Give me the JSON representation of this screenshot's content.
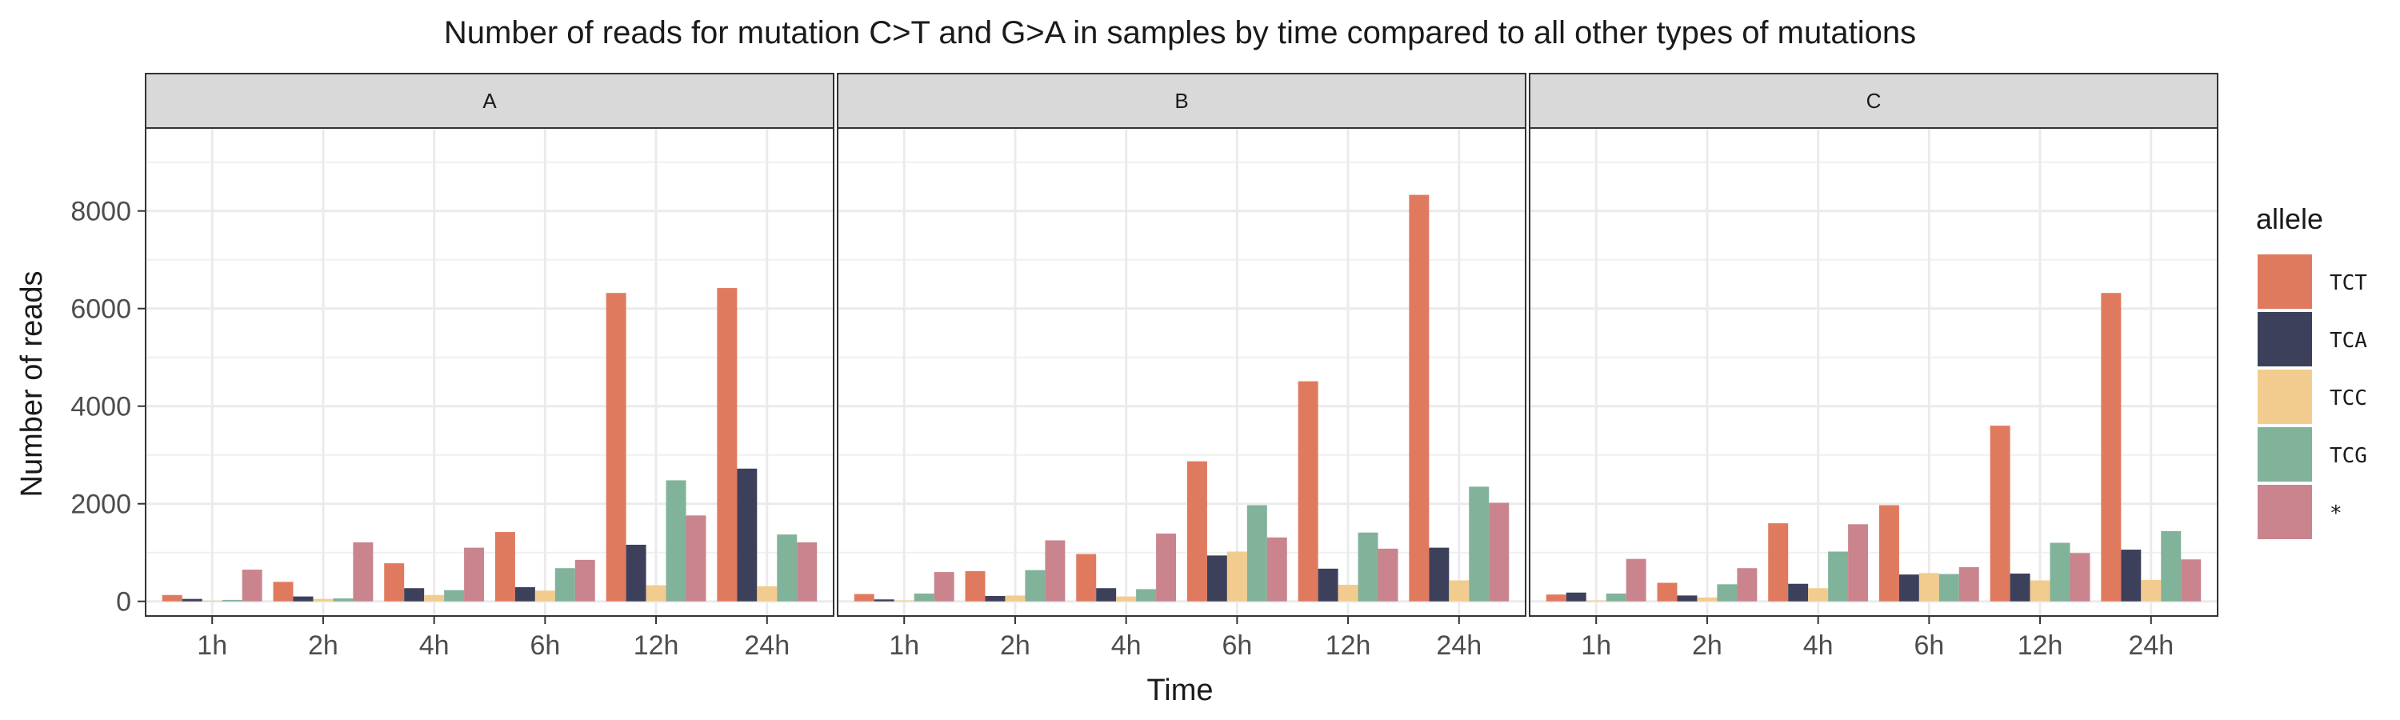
{
  "chart_data": {
    "type": "bar",
    "title": "Number of reads for mutation C>T and G>A in samples by time compared to all other types of mutations",
    "xlabel": "Time",
    "ylabel": "Number of reads",
    "ylim": [
      -300,
      9700
    ],
    "yticks": [
      0,
      2000,
      4000,
      6000,
      8000
    ],
    "ytick_labels": [
      "0",
      "2000",
      "4000",
      "6000",
      "8000"
    ],
    "categories": [
      "1h",
      "2h",
      "4h",
      "6h",
      "12h",
      "24h"
    ],
    "grid": true,
    "legend": {
      "title": "allele",
      "position": "right",
      "entries": [
        "TCT",
        "TCA",
        "TCC",
        "TCG",
        "*"
      ]
    },
    "colors": [
      "#E07A5F",
      "#3D405B",
      "#F2CC8F",
      "#81B29A",
      "#C9848E"
    ],
    "panels": [
      {
        "name": "A",
        "series": [
          {
            "name": "TCT",
            "values": [
              130,
              400,
              780,
              1420,
              6320,
              6420
            ]
          },
          {
            "name": "TCA",
            "values": [
              50,
              100,
              270,
              290,
              1160,
              2720
            ]
          },
          {
            "name": "TCC",
            "values": [
              15,
              50,
              130,
              220,
              330,
              310
            ]
          },
          {
            "name": "TCG",
            "values": [
              30,
              60,
              230,
              680,
              2480,
              1370
            ]
          },
          {
            "name": "*",
            "values": [
              650,
              1210,
              1100,
              850,
              1760,
              1210
            ]
          }
        ]
      },
      {
        "name": "B",
        "series": [
          {
            "name": "TCT",
            "values": [
              150,
              620,
              970,
              2870,
              4510,
              8330
            ]
          },
          {
            "name": "TCA",
            "values": [
              40,
              110,
              270,
              940,
              670,
              1100
            ]
          },
          {
            "name": "TCC",
            "values": [
              20,
              120,
              100,
              1020,
              340,
              430
            ]
          },
          {
            "name": "TCG",
            "values": [
              160,
              640,
              250,
              1970,
              1410,
              2350
            ]
          },
          {
            "name": "*",
            "values": [
              600,
              1250,
              1390,
              1310,
              1080,
              2020
            ]
          }
        ]
      },
      {
        "name": "C",
        "series": [
          {
            "name": "TCT",
            "values": [
              140,
              380,
              1600,
              1970,
              3600,
              6320
            ]
          },
          {
            "name": "TCA",
            "values": [
              180,
              120,
              360,
              550,
              570,
              1060
            ]
          },
          {
            "name": "TCC",
            "values": [
              20,
              80,
              270,
              580,
              430,
              440
            ]
          },
          {
            "name": "TCG",
            "values": [
              160,
              350,
              1020,
              560,
              1200,
              1440
            ]
          },
          {
            "name": "*",
            "values": [
              870,
              680,
              1580,
              700,
              990,
              860
            ]
          }
        ]
      }
    ]
  }
}
